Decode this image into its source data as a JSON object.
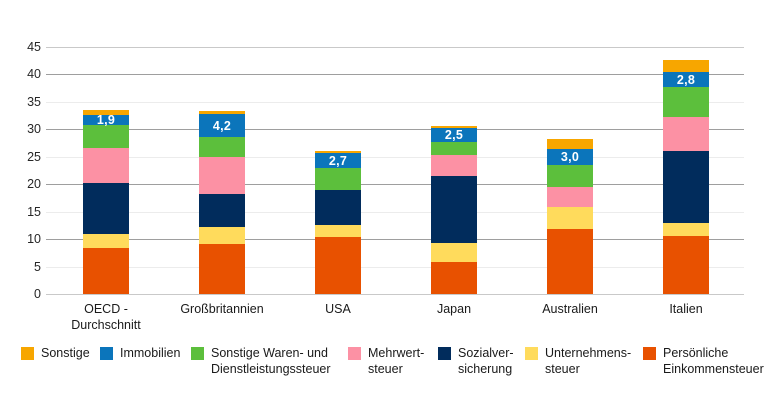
{
  "chart_data": {
    "type": "bar",
    "stacked": true,
    "title": "",
    "xlabel": "",
    "ylabel": "",
    "ylim": [
      0,
      45
    ],
    "yticks": [
      0,
      5,
      10,
      15,
      20,
      25,
      30,
      35,
      40,
      45
    ],
    "grid": "horizontal",
    "legend_position": "bottom",
    "decimal_separator": ",",
    "categories": [
      "OECD -\nDurchschnitt",
      "Großbritannien",
      "USA",
      "Japan",
      "Australien",
      "Italien"
    ],
    "category_slugs": [
      "oecd-durchschnitt",
      "grossbritannien",
      "usa",
      "japan",
      "australien",
      "italien"
    ],
    "series": [
      {
        "name": "Persönliche Einkommensteuer",
        "slug": "persoenliche-einkommensteuer",
        "color": "#E85100",
        "values": [
          8.4,
          9.1,
          10.4,
          5.8,
          11.8,
          10.6
        ]
      },
      {
        "name": "Unternehmenssteuer",
        "slug": "unternehmenssteuer",
        "color": "#FFDB5C",
        "values": [
          2.5,
          3.0,
          2.1,
          3.5,
          4.0,
          2.4
        ]
      },
      {
        "name": "Sozialversicherung",
        "slug": "sozialversicherung",
        "color": "#012C5C",
        "values": [
          9.3,
          6.0,
          6.5,
          12.1,
          0,
          13.0
        ]
      },
      {
        "name": "Mehrwertsteuer",
        "slug": "mehrwertsteuer",
        "color": "#FC91A4",
        "values": [
          6.3,
          6.9,
          0,
          3.8,
          3.6,
          6.1
        ]
      },
      {
        "name": "Sonstige Waren- und Dienstleistungssteuer",
        "slug": "sonstige-waren-und-dienstleistungssteuer",
        "color": "#5CBF3C",
        "values": [
          4.2,
          3.6,
          4.0,
          2.4,
          4.0,
          5.5
        ]
      },
      {
        "name": "Immobilien",
        "slug": "immobilien",
        "color": "#0B75BB",
        "values": [
          1.9,
          4.2,
          2.7,
          2.5,
          3.0,
          2.8
        ],
        "labels": [
          "1,9",
          "4,2",
          "2,7",
          "2,5",
          "3,0",
          "2,8"
        ]
      },
      {
        "name": "Sonstige",
        "slug": "sonstige",
        "color": "#F7A600",
        "values": [
          0.8,
          0.4,
          0.3,
          0.5,
          1.7,
          2.1
        ]
      }
    ]
  },
  "legend": {
    "items": [
      {
        "label": "Sonstige",
        "lines": "Sonstige",
        "color": "#F7A600",
        "slug": "sonstige"
      },
      {
        "label": "Immobilien",
        "lines": "Immobilien",
        "color": "#0B75BB",
        "slug": "immobilien"
      },
      {
        "label": "Sonstige Waren- und Dienstleistungssteuer",
        "lines": "Sonstige Waren- und\nDienstleistungssteuer",
        "color": "#5CBF3C",
        "slug": "sonstige-waren-und-dienstleistungssteuer"
      },
      {
        "label": "Mehrwertsteuer",
        "lines": "Mehrwert-\nsteuer",
        "color": "#FC91A4",
        "slug": "mehrwertsteuer"
      },
      {
        "label": "Sozialversicherung",
        "lines": "Sozialver-\nsicherung",
        "color": "#012C5C",
        "slug": "sozialversicherung"
      },
      {
        "label": "Unternehmenssteuer",
        "lines": "Unternehmens-\nsteuer",
        "color": "#FFDB5C",
        "slug": "unternehmenssteuer"
      },
      {
        "label": "Persönliche Einkommensteuer",
        "lines": "Persönliche\nEinkommensteuer",
        "color": "#E85100",
        "slug": "persoenliche-einkommensteuer"
      }
    ]
  }
}
